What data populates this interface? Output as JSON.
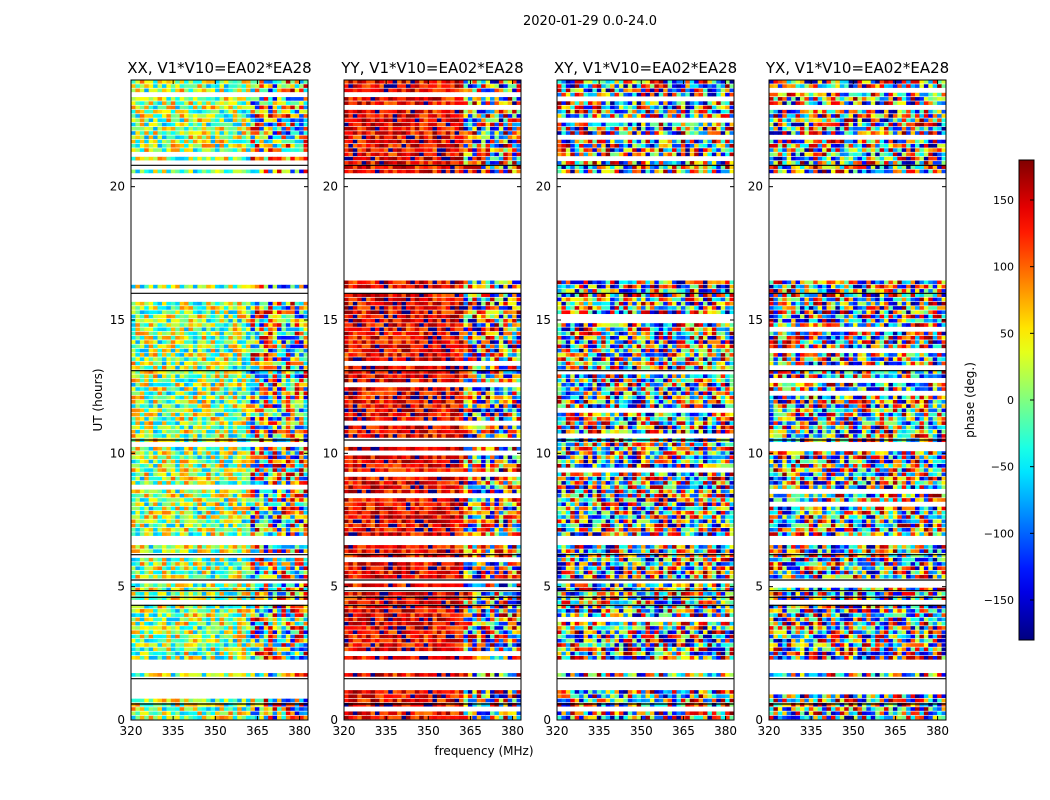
{
  "figure": {
    "suptitle": "2020-01-29 0.0-24.0"
  },
  "chart_data": {
    "type": "heatmap",
    "title": "2020-01-29 0.0-24.0",
    "xlabel": "frequency (MHz)",
    "ylabel": "UT (hours)",
    "xlim": [
      320,
      383
    ],
    "ylim": [
      0,
      24
    ],
    "xticks": [
      320,
      335,
      350,
      365,
      380
    ],
    "yticks": [
      0,
      5,
      10,
      15,
      20
    ],
    "panels": [
      {
        "title": "XX, V1*V10=EA02*EA28",
        "mean_phase": 10,
        "spread": 90
      },
      {
        "title": "YY, V1*V10=EA02*EA28",
        "mean_phase": 140,
        "spread": 50
      },
      {
        "title": "XY, V1*V10=EA02*EA28",
        "mean_phase": 0,
        "spread": 180
      },
      {
        "title": "YX, V1*V10=EA02*EA28",
        "mean_phase": 0,
        "spread": 180
      }
    ],
    "flagged_ut_ranges": [
      [
        1.1,
        1.6
      ],
      [
        1.7,
        2.3
      ],
      [
        5.05,
        5.2
      ],
      [
        6.6,
        6.9
      ],
      [
        16.5,
        20.4
      ]
    ],
    "colorbar": {
      "label": "phase (deg.)",
      "range": [
        -180,
        180
      ],
      "ticks": [
        150,
        100,
        50,
        0,
        -50,
        -100,
        -150
      ],
      "tick_labels": [
        "150",
        "100",
        "50",
        "0",
        "−50",
        "−100",
        "−150"
      ],
      "colormap": "jet"
    }
  }
}
